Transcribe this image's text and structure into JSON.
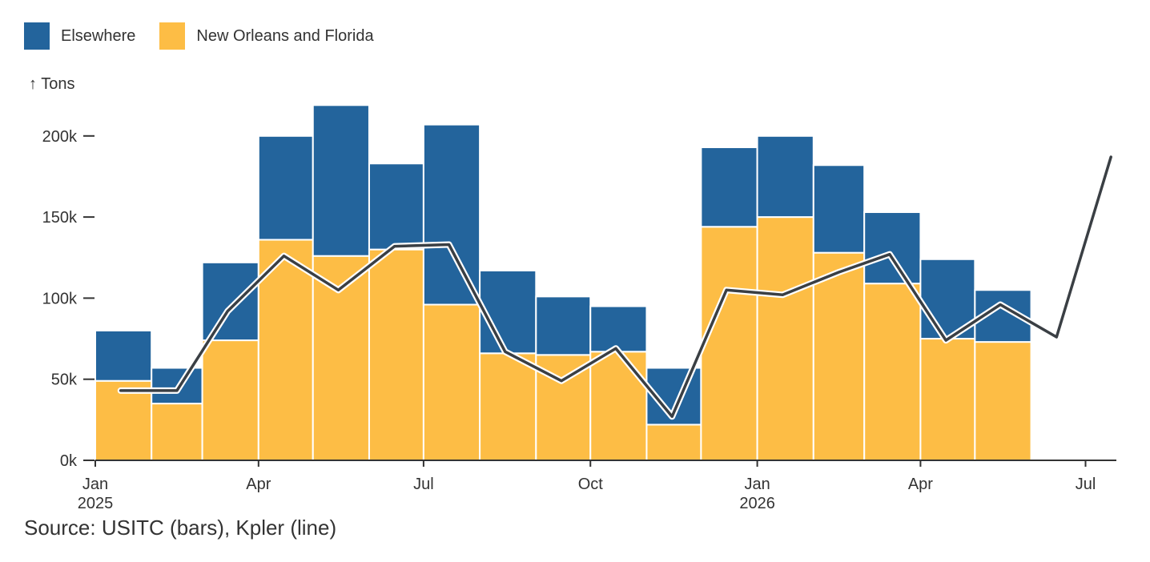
{
  "legend": {
    "items": [
      {
        "label": "Elsewhere",
        "color": "#23649c"
      },
      {
        "label": "New Orleans and Florida",
        "color": "#fdbd45"
      }
    ]
  },
  "ylabel": "↑ Tons",
  "source": "Source: USITC (bars), Kpler (line)",
  "chart_data": {
    "type": "bar",
    "stacked": true,
    "ylim": [
      0,
      220000
    ],
    "yticks": [
      {
        "value": 0,
        "label": "0k"
      },
      {
        "value": 50000,
        "label": "50k"
      },
      {
        "value": 100000,
        "label": "100k"
      },
      {
        "value": 150000,
        "label": "150k"
      },
      {
        "value": 200000,
        "label": "200k"
      }
    ],
    "xlim": [
      "2025-01-01",
      "2026-07-18"
    ],
    "xticks": [
      {
        "date": "2025-01-01",
        "label": "Jan",
        "sublabel": "2025"
      },
      {
        "date": "2025-04-01",
        "label": "Apr",
        "sublabel": ""
      },
      {
        "date": "2025-07-01",
        "label": "Jul",
        "sublabel": ""
      },
      {
        "date": "2025-10-01",
        "label": "Oct",
        "sublabel": ""
      },
      {
        "date": "2026-01-01",
        "label": "Jan",
        "sublabel": "2026"
      },
      {
        "date": "2026-04-01",
        "label": "Apr",
        "sublabel": ""
      },
      {
        "date": "2026-07-01",
        "label": "Jul",
        "sublabel": ""
      }
    ],
    "categories": [
      "2025-01",
      "2025-02",
      "2025-03",
      "2025-04",
      "2025-05",
      "2025-06",
      "2025-07",
      "2025-08",
      "2025-09",
      "2025-10",
      "2025-11",
      "2025-12",
      "2026-01",
      "2026-02",
      "2026-03",
      "2026-04",
      "2026-05"
    ],
    "series": [
      {
        "name": "New Orleans and Florida",
        "color": "#fdbd45",
        "values": [
          49000,
          35000,
          74000,
          136000,
          126000,
          130000,
          96000,
          66000,
          65000,
          67000,
          22000,
          144000,
          150000,
          128000,
          109000,
          75000,
          73000
        ]
      },
      {
        "name": "Elsewhere",
        "color": "#23649c",
        "values": [
          31000,
          22000,
          48000,
          64000,
          93000,
          53000,
          111000,
          51000,
          36000,
          28000,
          35000,
          49000,
          50000,
          54000,
          44000,
          49000,
          32000
        ]
      }
    ],
    "line": {
      "color": "#3a3f44",
      "points": [
        {
          "x": "2025-01-15",
          "y": 43000
        },
        {
          "x": "2025-02-15",
          "y": 43000
        },
        {
          "x": "2025-03-15",
          "y": 92000
        },
        {
          "x": "2025-04-15",
          "y": 126000
        },
        {
          "x": "2025-05-15",
          "y": 105000
        },
        {
          "x": "2025-06-15",
          "y": 132000
        },
        {
          "x": "2025-07-15",
          "y": 133000
        },
        {
          "x": "2025-08-15",
          "y": 67000
        },
        {
          "x": "2025-09-15",
          "y": 49000
        },
        {
          "x": "2025-10-15",
          "y": 69000
        },
        {
          "x": "2025-11-15",
          "y": 27000
        },
        {
          "x": "2025-12-15",
          "y": 105000
        },
        {
          "x": "2026-01-15",
          "y": 102000
        },
        {
          "x": "2026-02-15",
          "y": 116000
        },
        {
          "x": "2026-03-15",
          "y": 127000
        },
        {
          "x": "2026-04-15",
          "y": 74000
        },
        {
          "x": "2026-05-15",
          "y": 96000
        },
        {
          "x": "2026-06-15",
          "y": 76000
        },
        {
          "x": "2026-07-15",
          "y": 187000
        }
      ]
    }
  }
}
